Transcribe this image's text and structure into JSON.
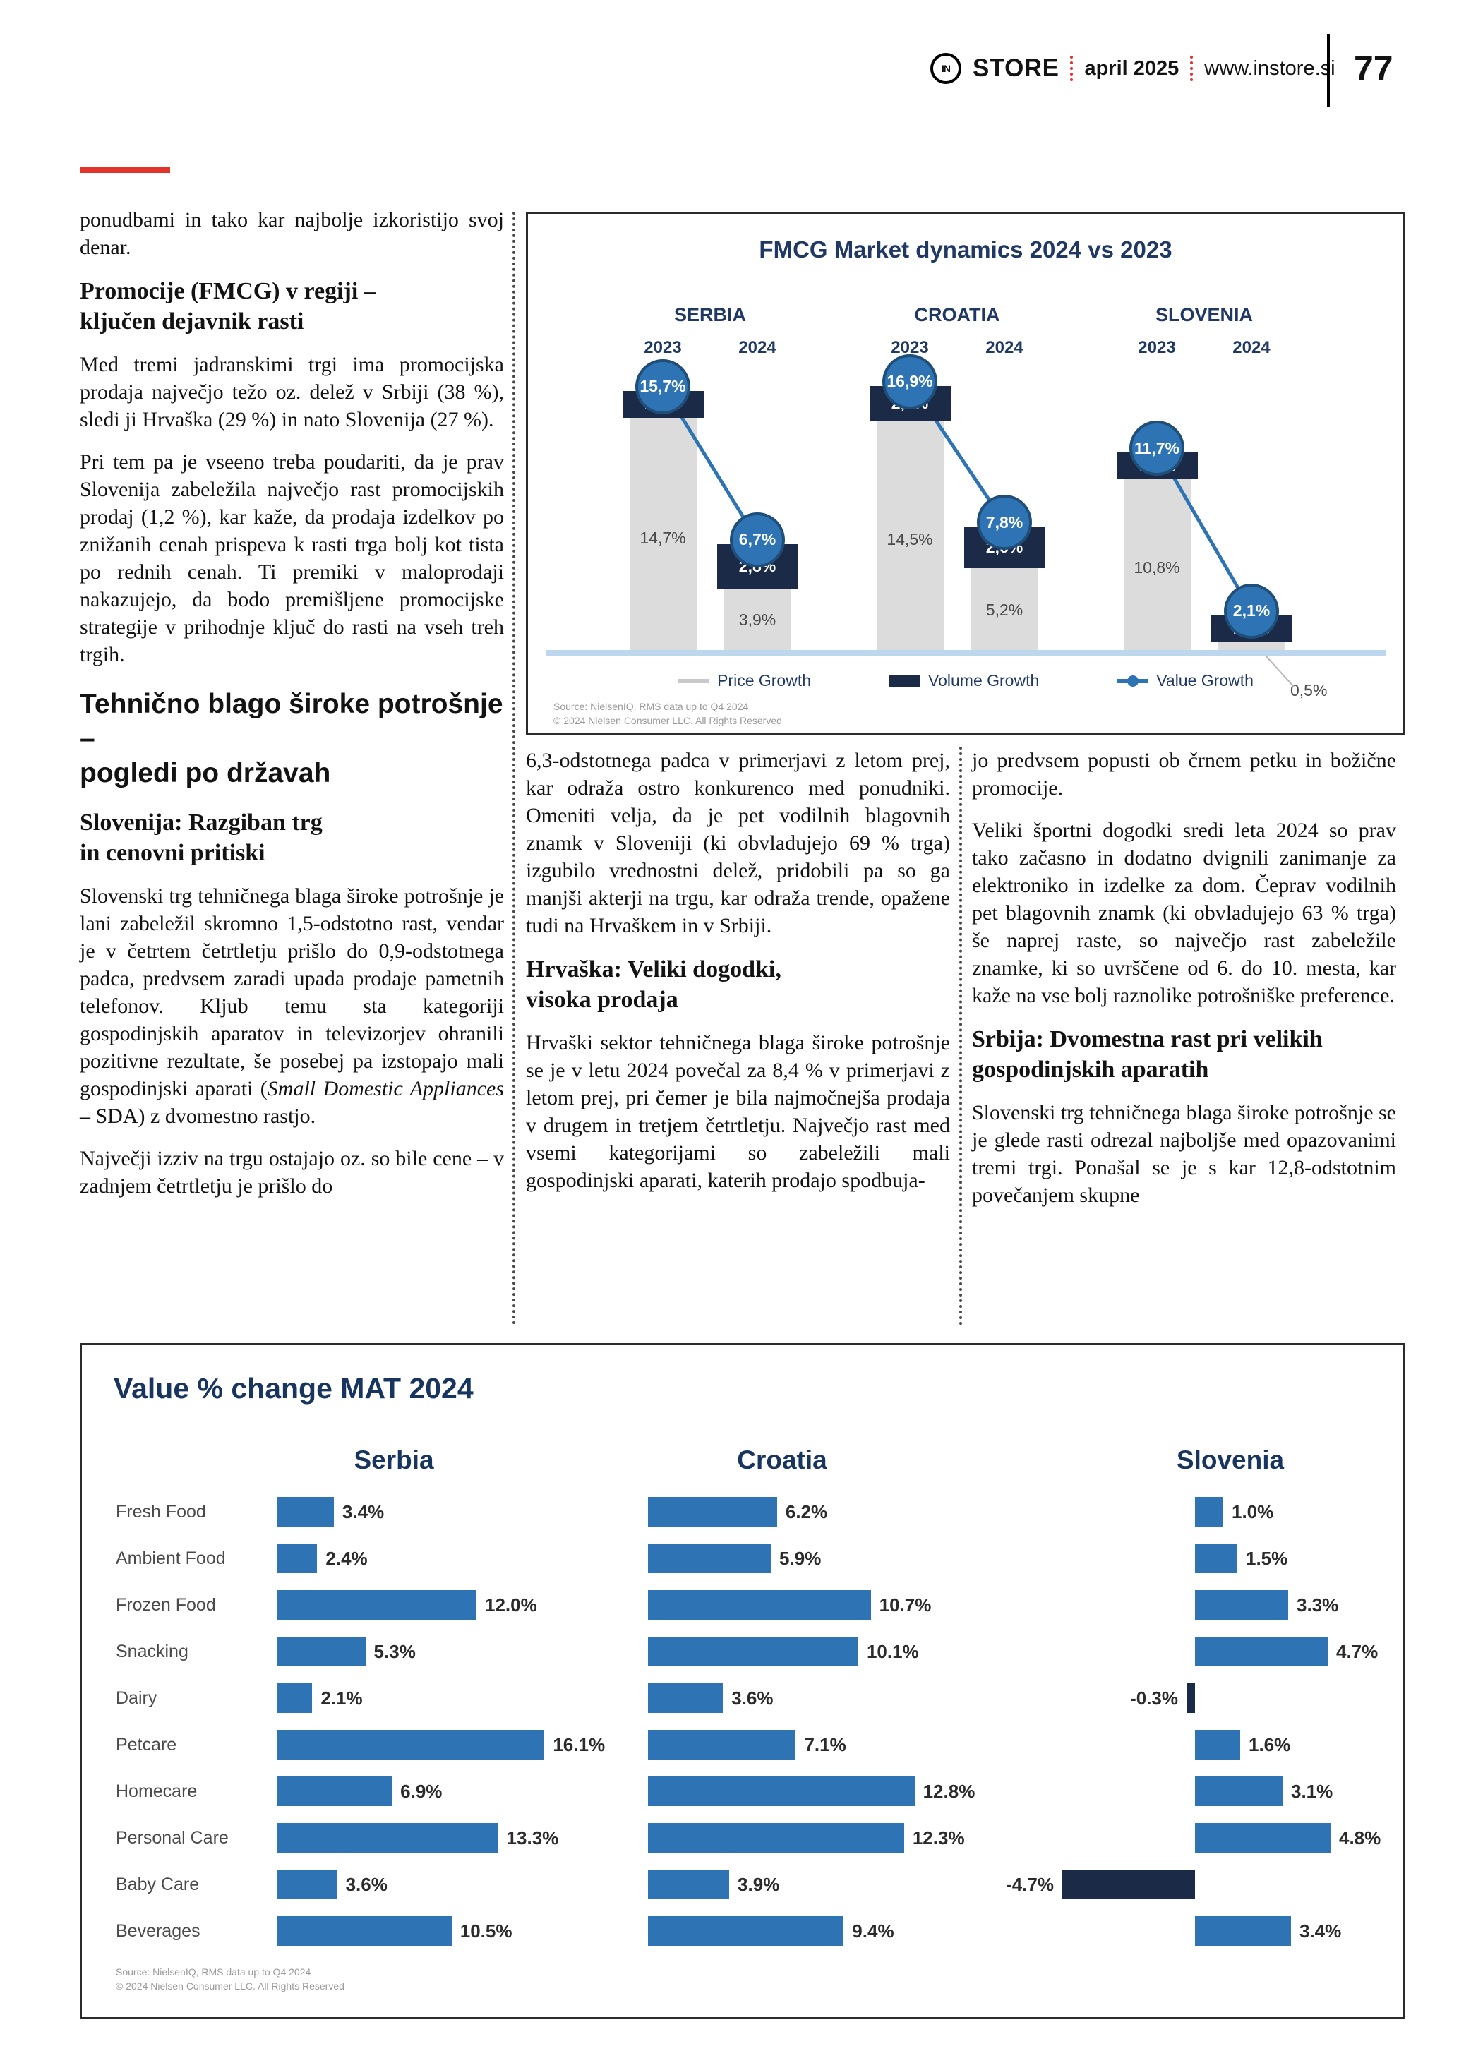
{
  "header": {
    "logo_text": "IN",
    "brand": "STORE",
    "issue": "april 2025",
    "site": "www.instore.si",
    "page_number": "77"
  },
  "colors": {
    "accent_red": "#E3342B",
    "heading_navy": "#1F3864",
    "bar_blue": "#2E74B5",
    "bar_gray": "#DCDCDC",
    "baseline_blue": "#BDD7EE",
    "negative_navy": "#1B2A47",
    "circle_ring": "#1F4E79"
  },
  "article": {
    "col1": {
      "p1": "ponudbami in tako kar najbolje izkoristijo svoj denar.",
      "h1": "Promocije (FMCG) v regiji –\nključen dejavnik rasti",
      "p2": "Med tremi jadranskimi trgi ima promocijska prodaja največjo težo oz. delež v Srbiji (38 %), sledi ji Hrvaška (29 %) in nato Slovenija (27 %).",
      "p3": "Pri tem pa je vseeno treba poudariti, da je prav Slovenija zabeležila največjo rast promocijskih prodaj (1,2 %), kar kaže, da prodaja izdelkov po znižanih cenah prispeva k rasti trga bolj kot tista po rednih cenah. Ti premiki v maloprodaji nakazujejo, da bodo premišljene promocijske strategije v prihodnje ključ do rasti na vseh treh trgih.",
      "h2": "Tehnično blago široke potrošnje –\npogledi po državah",
      "h3": "Slovenija: Razgiban trg\nin cenovni pritiski",
      "p4_pre": "Slovenski trg tehničnega blaga široke potrošnje je lani zabeležil skromno 1,5-odstotno rast, vendar je v četrtem četrtletju prišlo do 0,9-odstotnega padca, predvsem zaradi upada prodaje pametnih telefonov. Kljub temu sta kategoriji gospodinjskih aparatov in televizorjev ohranili pozitivne rezultate, še posebej pa izstopajo mali gospodinjski aparati (",
      "p4_italic": "Small Domestic Appliances",
      "p4_post": " – SDA) z dvomestno rastjo.",
      "p5": "Največji izziv na trgu ostajajo oz. so bile cene – v zadnjem četrtletju je prišlo do"
    },
    "col2": {
      "p1": "6,3-odstotnega padca v primerjavi z letom prej, kar odraža ostro konkurenco med ponudniki. Omeniti velja, da je pet vodilnih blagovnih znamk v Sloveniji (ki obvladujejo 69 % trga) izgubilo vrednostni delež, pridobili pa so ga manjši akterji na trgu, kar odraža trende, opažene tudi na Hrvaškem in v Srbiji.",
      "h1": "Hrvaška: Veliki dogodki,\nvisoka prodaja",
      "p2": "Hrvaški sektor tehničnega blaga široke potrošnje se je v letu 2024 povečal za 8,4 % v primerjavi z letom prej, pri čemer je bila najmočnejša prodaja v drugem in tretjem četrtletju. Največjo rast med vsemi kategorijami so zabeležili mali gospodinjski aparati, katerih prodajo spodbuja-"
    },
    "col3": {
      "p1": "jo predvsem popusti ob črnem petku in božične promocije.",
      "p2": "Veliki športni dogodki sredi leta 2024 so prav tako začasno in dodatno dvignili zanimanje za elektroniko in izdelke za dom. Čeprav vodilnih pet blagovnih znamk (ki obvladujejo 63 % trga) še naprej raste, so največjo rast zabeležile znamke, ki so uvrščene od 6. do 10. mesta, kar kaže na vse bolj raznolike potrošniške preference.",
      "h1": "Srbija: Dvomestna rast pri velikih\ngospodinjskih aparatih",
      "p3": "Slovenski trg tehničnega blaga široke potrošnje se je glede rasti odrezal najboljše med opazovanimi tremi trgi. Ponašal se je s kar 12,8-odstotnim povečanjem skupne"
    }
  },
  "chart_data": [
    {
      "type": "bar",
      "subtype": "grouped-column-combo",
      "title": "FMCG Market dynamics 2024 vs 2023",
      "groups": [
        "SERBIA",
        "CROATIA",
        "SLOVENIA"
      ],
      "years": [
        "2023",
        "2024"
      ],
      "series_legend": [
        "Price Growth",
        "Volume Growth",
        "Value Growth"
      ],
      "ylim": [
        0,
        17
      ],
      "points": [
        {
          "country": "SERBIA",
          "year": "2023",
          "price_pct": 14.7,
          "price_label": "14,7%",
          "volume_pct": 1.1,
          "volume_label": "1,1%",
          "value_pct": 15.7,
          "value_label": "15,7%"
        },
        {
          "country": "SERBIA",
          "year": "2024",
          "price_pct": 3.9,
          "price_label": "3,9%",
          "volume_pct": 2.8,
          "volume_label": "2,8%",
          "value_pct": 6.7,
          "value_label": "6,7%"
        },
        {
          "country": "CROATIA",
          "year": "2023",
          "price_pct": 14.5,
          "price_label": "14,5%",
          "volume_pct": 2.2,
          "volume_label": "2,2%",
          "value_pct": 16.9,
          "value_label": "16,9%"
        },
        {
          "country": "CROATIA",
          "year": "2024",
          "price_pct": 5.2,
          "price_label": "5,2%",
          "volume_pct": 2.6,
          "volume_label": "2,6%",
          "value_pct": 7.8,
          "value_label": "7,8%"
        },
        {
          "country": "SLOVENIA",
          "year": "2023",
          "price_pct": 10.8,
          "price_label": "10,8%",
          "volume_pct": 0.9,
          "volume_label": "0,9%",
          "value_pct": 11.7,
          "value_label": "11,7%"
        },
        {
          "country": "SLOVENIA",
          "year": "2024",
          "price_pct": 0.5,
          "price_label": "0,5%",
          "volume_pct": 1.6,
          "volume_label": "1,6%",
          "value_pct": 2.1,
          "value_label": "2,1%"
        }
      ],
      "source_line1": "Source: NielsenIQ, RMS data up to Q4 2024",
      "source_line2": "© 2024 Nielsen Consumer LLC. All Rights Reserved"
    },
    {
      "type": "bar",
      "subtype": "horizontal-grouped-panels",
      "title": "Value % change MAT 2024",
      "categories": [
        "Fresh Food",
        "Ambient Food",
        "Frozen Food",
        "Snacking",
        "Dairy",
        "Petcare",
        "Homecare",
        "Personal Care",
        "Baby Care",
        "Beverages"
      ],
      "panels": [
        {
          "name": "Serbia",
          "values": [
            3.4,
            2.4,
            12.0,
            5.3,
            2.1,
            16.1,
            6.9,
            13.3,
            3.6,
            10.5
          ],
          "labels": [
            "3.4%",
            "2.4%",
            "12.0%",
            "5.3%",
            "2.1%",
            "16.1%",
            "6.9%",
            "13.3%",
            "3.6%",
            "10.5%"
          ]
        },
        {
          "name": "Croatia",
          "values": [
            6.2,
            5.9,
            10.7,
            10.1,
            3.6,
            7.1,
            12.8,
            12.3,
            3.9,
            9.4
          ],
          "labels": [
            "6.2%",
            "5.9%",
            "10.7%",
            "10.1%",
            "3.6%",
            "7.1%",
            "12.8%",
            "12.3%",
            "3.9%",
            "9.4%"
          ]
        },
        {
          "name": "Slovenia",
          "values": [
            1.0,
            1.5,
            3.3,
            4.7,
            -0.3,
            1.6,
            3.1,
            4.8,
            -4.7,
            3.4
          ],
          "labels": [
            "1.0%",
            "1.5%",
            "3.3%",
            "4.7%",
            "-0.3%",
            "1.6%",
            "3.1%",
            "4.8%",
            "-4.7%",
            "3.4%"
          ]
        }
      ],
      "source_line1": "Source: NielsenIQ, RMS data up to Q4 2024",
      "source_line2": "© 2024 Nielsen Consumer LLC. All Rights Reserved"
    }
  ]
}
